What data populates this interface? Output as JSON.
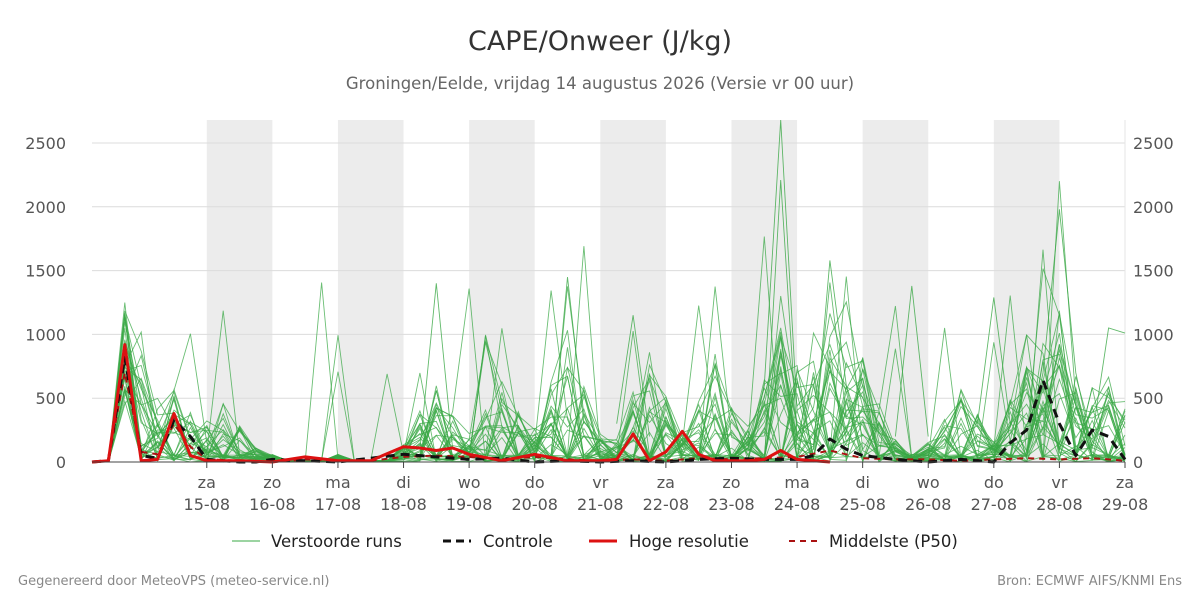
{
  "chart_data": {
    "type": "line",
    "title": "CAPE/Onweer (J/kg)",
    "subtitle": "Groningen/Eelde, vrijdag 14 augustus 2026 (Versie vr 00 uur)",
    "ylim": [
      0,
      2680
    ],
    "y_ticks": [
      0,
      500,
      1000,
      1500,
      2000,
      2500
    ],
    "x_ticks": [
      {
        "day": 1,
        "top": "za",
        "bottom": "15-08"
      },
      {
        "day": 2,
        "top": "zo",
        "bottom": "16-08"
      },
      {
        "day": 3,
        "top": "ma",
        "bottom": "17-08"
      },
      {
        "day": 4,
        "top": "di",
        "bottom": "18-08"
      },
      {
        "day": 5,
        "top": "wo",
        "bottom": "19-08"
      },
      {
        "day": 6,
        "top": "do",
        "bottom": "20-08"
      },
      {
        "day": 7,
        "top": "vr",
        "bottom": "21-08"
      },
      {
        "day": 8,
        "top": "za",
        "bottom": "22-08"
      },
      {
        "day": 9,
        "top": "zo",
        "bottom": "23-08"
      },
      {
        "day": 10,
        "top": "ma",
        "bottom": "24-08"
      },
      {
        "day": 11,
        "top": "di",
        "bottom": "25-08"
      },
      {
        "day": 12,
        "top": "wo",
        "bottom": "26-08"
      },
      {
        "day": 13,
        "top": "do",
        "bottom": "27-08"
      },
      {
        "day": 14,
        "top": "vr",
        "bottom": "28-08"
      },
      {
        "day": 15,
        "top": "za",
        "bottom": "29-08"
      }
    ],
    "weekend_bands": [
      [
        1,
        2
      ],
      [
        3,
        4
      ],
      [
        5,
        6
      ],
      [
        7,
        8
      ],
      [
        9,
        10
      ],
      [
        11,
        12
      ],
      [
        13,
        14
      ]
    ],
    "x_range": [
      -0.75,
      15
    ],
    "legend": [
      {
        "label": "Verstoorde runs",
        "color": "#3aa845",
        "style": "thin"
      },
      {
        "label": "Controle",
        "color": "#111111",
        "style": "dashed"
      },
      {
        "label": "Hoge resolutie",
        "color": "#dd1111",
        "style": "solid"
      },
      {
        "label": "Middelste (P50)",
        "color": "#aa1111",
        "style": "dashed"
      }
    ],
    "series": [
      {
        "name": "Controle",
        "x": [
          -0.75,
          -0.5,
          -0.25,
          0,
          0.25,
          0.5,
          0.75,
          1,
          1.25,
          1.5,
          1.75,
          2,
          2.5,
          3,
          3.5,
          4,
          4.5,
          5,
          5.5,
          6,
          6.5,
          7,
          7.5,
          8,
          8.5,
          9,
          9.5,
          10,
          10.25,
          10.5,
          10.75,
          11,
          11.5,
          12,
          12.5,
          13,
          13.25,
          13.5,
          13.75,
          14,
          14.25,
          14.5,
          14.75,
          15
        ],
        "y": [
          0,
          10,
          820,
          50,
          30,
          330,
          200,
          20,
          10,
          0,
          0,
          20,
          10,
          0,
          30,
          60,
          40,
          20,
          30,
          0,
          10,
          0,
          10,
          0,
          20,
          30,
          20,
          20,
          50,
          180,
          100,
          50,
          20,
          0,
          20,
          0,
          150,
          250,
          640,
          300,
          50,
          250,
          200,
          20
        ]
      },
      {
        "name": "Hoge resolutie",
        "x": [
          -0.75,
          -0.5,
          -0.25,
          0,
          0.25,
          0.5,
          0.75,
          1,
          1.5,
          2,
          2.5,
          3,
          3.5,
          4,
          4.25,
          4.5,
          4.75,
          5,
          5.5,
          6,
          6.5,
          7,
          7.25,
          7.5,
          7.75,
          8,
          8.25,
          8.5,
          8.75,
          9,
          9.25,
          9.5,
          9.75,
          10,
          10.25,
          10.5
        ],
        "y": [
          0,
          10,
          920,
          10,
          20,
          380,
          50,
          10,
          10,
          0,
          40,
          10,
          10,
          120,
          110,
          90,
          110,
          60,
          10,
          60,
          10,
          10,
          20,
          220,
          10,
          80,
          240,
          60,
          10,
          10,
          10,
          20,
          90,
          20,
          10,
          0
        ]
      },
      {
        "name": "Middelste (P50)",
        "x": [
          -0.75,
          -0.5,
          -0.25,
          0,
          0.25,
          0.5,
          0.75,
          1,
          1.5,
          2,
          2.5,
          3,
          3.5,
          4,
          4.5,
          5,
          5.5,
          6,
          6.5,
          7,
          7.5,
          8,
          8.5,
          9,
          9.5,
          10,
          10.5,
          11,
          11.5,
          12,
          12.5,
          13,
          13.5,
          14,
          14.5,
          15
        ],
        "y": [
          0,
          10,
          700,
          80,
          60,
          300,
          120,
          20,
          10,
          0,
          20,
          10,
          10,
          40,
          50,
          40,
          20,
          40,
          20,
          10,
          20,
          10,
          30,
          20,
          30,
          40,
          90,
          30,
          20,
          20,
          10,
          20,
          30,
          20,
          30,
          10
        ]
      }
    ]
  },
  "legend_labels": {
    "perturbed": "Verstoorde runs",
    "control": "Controle",
    "hires": "Hoge resolutie",
    "median": "Middelste (P50)"
  },
  "footer": {
    "left": "Gegenereerd door MeteoVPS (meteo-service.nl)",
    "right": "Bron: ECMWF AIFS/KNMI Ens"
  }
}
